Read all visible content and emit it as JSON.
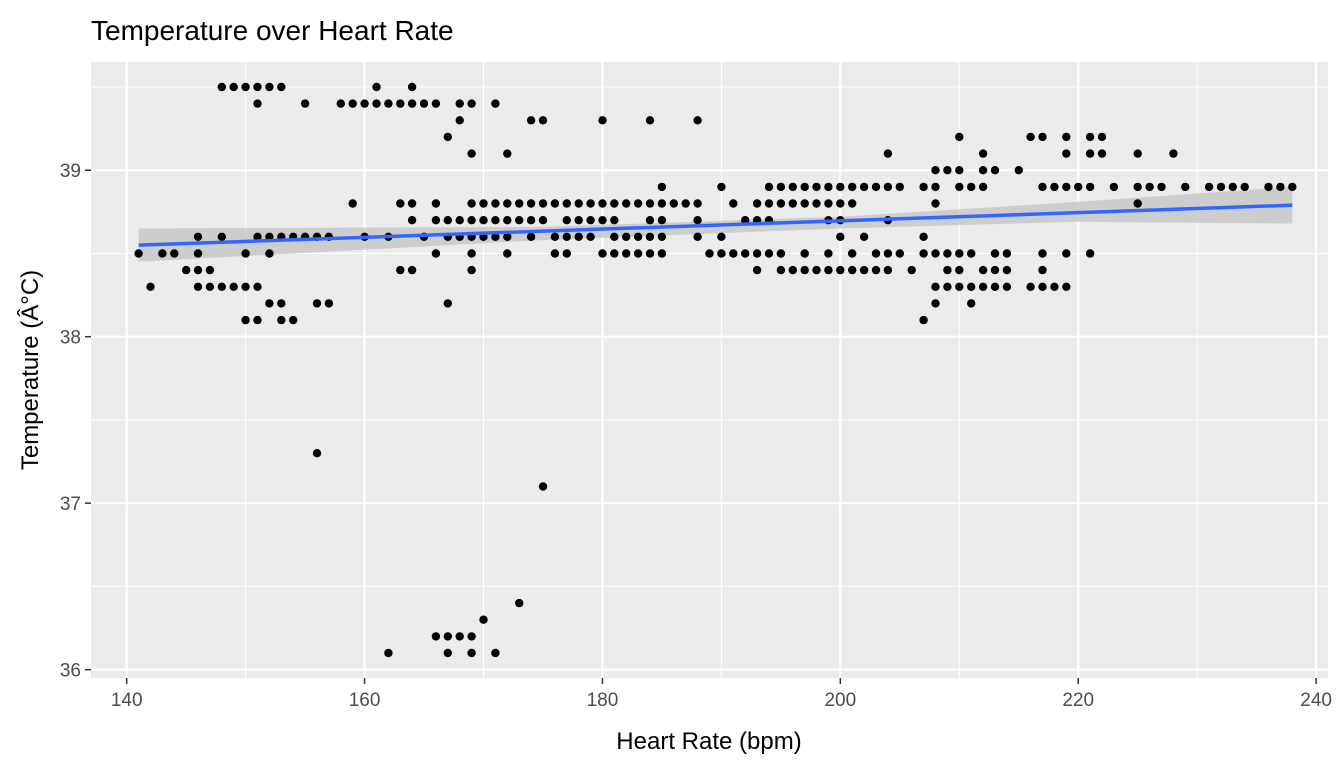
{
  "chart_data": {
    "type": "scatter",
    "title": "Temperature over Heart Rate",
    "xlabel": "Heart Rate (bpm)",
    "ylabel": "Temperature (Â°C)",
    "xlim": [
      137,
      241
    ],
    "ylim": [
      35.95,
      39.65
    ],
    "x_ticks": [
      140,
      160,
      180,
      200,
      220,
      240
    ],
    "y_ticks": [
      36,
      37,
      38,
      39
    ],
    "grid": true,
    "panel_color": "#ebebeb",
    "point_color": "#000000",
    "trend_color": "#3366ff",
    "band_color": "#c8c8c8",
    "trend": {
      "method": "lm",
      "x": [
        141,
        238
      ],
      "y": [
        38.55,
        38.79
      ],
      "se_band": [
        {
          "x": 141,
          "lo": 38.45,
          "hi": 38.65
        },
        {
          "x": 175,
          "lo": 38.58,
          "hi": 38.66
        },
        {
          "x": 200,
          "lo": 38.65,
          "hi": 38.72
        },
        {
          "x": 220,
          "lo": 38.69,
          "hi": 38.81
        },
        {
          "x": 238,
          "lo": 38.68,
          "hi": 38.9
        }
      ]
    },
    "points": [
      [
        141,
        38.5
      ],
      [
        142,
        38.3
      ],
      [
        143,
        38.5
      ],
      [
        144,
        38.5
      ],
      [
        145,
        38.4
      ],
      [
        146,
        38.6
      ],
      [
        146,
        38.5
      ],
      [
        146,
        38.4
      ],
      [
        146,
        38.3
      ],
      [
        147,
        38.4
      ],
      [
        147,
        38.3
      ],
      [
        148,
        39.5
      ],
      [
        148,
        38.6
      ],
      [
        148,
        38.3
      ],
      [
        149,
        39.5
      ],
      [
        149,
        38.3
      ],
      [
        150,
        39.5
      ],
      [
        150,
        38.5
      ],
      [
        150,
        38.3
      ],
      [
        150,
        38.1
      ],
      [
        151,
        39.5
      ],
      [
        151,
        39.4
      ],
      [
        151,
        38.6
      ],
      [
        151,
        38.3
      ],
      [
        151,
        38.1
      ],
      [
        152,
        39.5
      ],
      [
        152,
        38.6
      ],
      [
        152,
        38.5
      ],
      [
        152,
        38.2
      ],
      [
        153,
        39.5
      ],
      [
        153,
        38.6
      ],
      [
        153,
        38.2
      ],
      [
        153,
        38.1
      ],
      [
        154,
        38.6
      ],
      [
        154,
        38.1
      ],
      [
        155,
        39.4
      ],
      [
        155,
        38.6
      ],
      [
        156,
        38.6
      ],
      [
        156,
        38.2
      ],
      [
        156,
        37.3
      ],
      [
        157,
        38.6
      ],
      [
        157,
        38.2
      ],
      [
        158,
        39.4
      ],
      [
        159,
        39.4
      ],
      [
        159,
        38.8
      ],
      [
        160,
        39.4
      ],
      [
        160,
        38.6
      ],
      [
        161,
        39.5
      ],
      [
        161,
        39.4
      ],
      [
        162,
        39.4
      ],
      [
        162,
        38.6
      ],
      [
        162,
        36.1
      ],
      [
        163,
        39.4
      ],
      [
        163,
        38.8
      ],
      [
        163,
        38.4
      ],
      [
        164,
        39.5
      ],
      [
        164,
        39.4
      ],
      [
        164,
        38.8
      ],
      [
        164,
        38.7
      ],
      [
        164,
        38.4
      ],
      [
        165,
        39.4
      ],
      [
        165,
        38.6
      ],
      [
        166,
        39.4
      ],
      [
        166,
        38.8
      ],
      [
        166,
        38.7
      ],
      [
        166,
        38.5
      ],
      [
        166,
        36.2
      ],
      [
        167,
        39.2
      ],
      [
        167,
        38.7
      ],
      [
        167,
        38.6
      ],
      [
        167,
        38.2
      ],
      [
        167,
        36.2
      ],
      [
        167,
        36.1
      ],
      [
        168,
        39.4
      ],
      [
        168,
        39.3
      ],
      [
        168,
        38.7
      ],
      [
        168,
        38.6
      ],
      [
        168,
        36.2
      ],
      [
        169,
        39.4
      ],
      [
        169,
        39.1
      ],
      [
        169,
        38.8
      ],
      [
        169,
        38.7
      ],
      [
        169,
        38.6
      ],
      [
        169,
        38.5
      ],
      [
        169,
        38.4
      ],
      [
        169,
        36.2
      ],
      [
        169,
        36.1
      ],
      [
        170,
        38.8
      ],
      [
        170,
        38.7
      ],
      [
        170,
        38.6
      ],
      [
        170,
        36.3
      ],
      [
        171,
        39.4
      ],
      [
        171,
        38.8
      ],
      [
        171,
        38.7
      ],
      [
        171,
        38.6
      ],
      [
        171,
        36.1
      ],
      [
        172,
        39.1
      ],
      [
        172,
        38.8
      ],
      [
        172,
        38.7
      ],
      [
        172,
        38.6
      ],
      [
        172,
        38.5
      ],
      [
        173,
        38.8
      ],
      [
        173,
        38.7
      ],
      [
        173,
        36.4
      ],
      [
        174,
        39.3
      ],
      [
        174,
        38.8
      ],
      [
        174,
        38.7
      ],
      [
        174,
        38.6
      ],
      [
        175,
        39.3
      ],
      [
        175,
        38.8
      ],
      [
        175,
        38.7
      ],
      [
        175,
        37.1
      ],
      [
        176,
        38.8
      ],
      [
        176,
        38.6
      ],
      [
        176,
        38.5
      ],
      [
        177,
        38.8
      ],
      [
        177,
        38.7
      ],
      [
        177,
        38.6
      ],
      [
        177,
        38.5
      ],
      [
        178,
        38.8
      ],
      [
        178,
        38.7
      ],
      [
        178,
        38.6
      ],
      [
        179,
        38.8
      ],
      [
        179,
        38.7
      ],
      [
        179,
        38.6
      ],
      [
        180,
        39.3
      ],
      [
        180,
        38.8
      ],
      [
        180,
        38.7
      ],
      [
        180,
        38.5
      ],
      [
        181,
        38.8
      ],
      [
        181,
        38.7
      ],
      [
        181,
        38.6
      ],
      [
        181,
        38.5
      ],
      [
        182,
        38.8
      ],
      [
        182,
        38.6
      ],
      [
        182,
        38.5
      ],
      [
        183,
        38.8
      ],
      [
        183,
        38.6
      ],
      [
        183,
        38.5
      ],
      [
        184,
        39.3
      ],
      [
        184,
        38.8
      ],
      [
        184,
        38.7
      ],
      [
        184,
        38.6
      ],
      [
        184,
        38.5
      ],
      [
        185,
        38.9
      ],
      [
        185,
        38.8
      ],
      [
        185,
        38.7
      ],
      [
        185,
        38.6
      ],
      [
        185,
        38.5
      ],
      [
        186,
        38.8
      ],
      [
        187,
        38.8
      ],
      [
        188,
        39.3
      ],
      [
        188,
        38.8
      ],
      [
        188,
        38.7
      ],
      [
        188,
        38.6
      ],
      [
        189,
        38.5
      ],
      [
        190,
        38.9
      ],
      [
        190,
        38.6
      ],
      [
        190,
        38.5
      ],
      [
        191,
        38.8
      ],
      [
        191,
        38.5
      ],
      [
        192,
        38.7
      ],
      [
        192,
        38.5
      ],
      [
        193,
        38.8
      ],
      [
        193,
        38.7
      ],
      [
        193,
        38.5
      ],
      [
        193,
        38.4
      ],
      [
        194,
        38.9
      ],
      [
        194,
        38.8
      ],
      [
        194,
        38.7
      ],
      [
        194,
        38.5
      ],
      [
        195,
        38.9
      ],
      [
        195,
        38.8
      ],
      [
        195,
        38.5
      ],
      [
        195,
        38.4
      ],
      [
        196,
        38.9
      ],
      [
        196,
        38.8
      ],
      [
        196,
        38.4
      ],
      [
        197,
        38.9
      ],
      [
        197,
        38.8
      ],
      [
        197,
        38.5
      ],
      [
        197,
        38.4
      ],
      [
        198,
        38.9
      ],
      [
        198,
        38.8
      ],
      [
        198,
        38.4
      ],
      [
        199,
        38.9
      ],
      [
        199,
        38.8
      ],
      [
        199,
        38.7
      ],
      [
        199,
        38.5
      ],
      [
        199,
        38.4
      ],
      [
        200,
        38.9
      ],
      [
        200,
        38.8
      ],
      [
        200,
        38.7
      ],
      [
        200,
        38.6
      ],
      [
        200,
        38.4
      ],
      [
        201,
        38.9
      ],
      [
        201,
        38.8
      ],
      [
        201,
        38.5
      ],
      [
        201,
        38.4
      ],
      [
        202,
        38.9
      ],
      [
        202,
        38.6
      ],
      [
        202,
        38.4
      ],
      [
        203,
        38.9
      ],
      [
        203,
        38.5
      ],
      [
        203,
        38.4
      ],
      [
        204,
        39.1
      ],
      [
        204,
        38.9
      ],
      [
        204,
        38.7
      ],
      [
        204,
        38.5
      ],
      [
        204,
        38.4
      ],
      [
        205,
        38.9
      ],
      [
        205,
        38.5
      ],
      [
        206,
        38.4
      ],
      [
        207,
        38.9
      ],
      [
        207,
        38.6
      ],
      [
        207,
        38.5
      ],
      [
        207,
        38.1
      ],
      [
        208,
        39.0
      ],
      [
        208,
        38.9
      ],
      [
        208,
        38.8
      ],
      [
        208,
        38.5
      ],
      [
        208,
        38.3
      ],
      [
        208,
        38.2
      ],
      [
        209,
        39.0
      ],
      [
        209,
        38.5
      ],
      [
        209,
        38.4
      ],
      [
        209,
        38.3
      ],
      [
        210,
        39.2
      ],
      [
        210,
        39.0
      ],
      [
        210,
        38.9
      ],
      [
        210,
        38.5
      ],
      [
        210,
        38.4
      ],
      [
        210,
        38.3
      ],
      [
        211,
        38.9
      ],
      [
        211,
        38.5
      ],
      [
        211,
        38.3
      ],
      [
        211,
        38.2
      ],
      [
        212,
        39.1
      ],
      [
        212,
        39.0
      ],
      [
        212,
        38.9
      ],
      [
        212,
        38.4
      ],
      [
        212,
        38.3
      ],
      [
        213,
        39.0
      ],
      [
        213,
        38.5
      ],
      [
        213,
        38.4
      ],
      [
        213,
        38.3
      ],
      [
        214,
        38.5
      ],
      [
        214,
        38.4
      ],
      [
        214,
        38.3
      ],
      [
        215,
        39.0
      ],
      [
        216,
        39.2
      ],
      [
        216,
        38.3
      ],
      [
        217,
        39.2
      ],
      [
        217,
        38.9
      ],
      [
        217,
        38.5
      ],
      [
        217,
        38.4
      ],
      [
        217,
        38.3
      ],
      [
        218,
        38.9
      ],
      [
        218,
        38.3
      ],
      [
        219,
        39.2
      ],
      [
        219,
        39.1
      ],
      [
        219,
        38.9
      ],
      [
        219,
        38.5
      ],
      [
        219,
        38.3
      ],
      [
        220,
        38.9
      ],
      [
        221,
        39.2
      ],
      [
        221,
        39.1
      ],
      [
        221,
        38.9
      ],
      [
        221,
        38.5
      ],
      [
        222,
        39.2
      ],
      [
        222,
        39.1
      ],
      [
        223,
        38.9
      ],
      [
        225,
        39.1
      ],
      [
        225,
        38.9
      ],
      [
        225,
        38.8
      ],
      [
        226,
        38.9
      ],
      [
        227,
        38.9
      ],
      [
        228,
        39.1
      ],
      [
        229,
        38.9
      ],
      [
        231,
        38.9
      ],
      [
        232,
        38.9
      ],
      [
        233,
        38.9
      ],
      [
        234,
        38.9
      ],
      [
        236,
        38.9
      ],
      [
        237,
        38.9
      ],
      [
        238,
        38.9
      ]
    ]
  }
}
